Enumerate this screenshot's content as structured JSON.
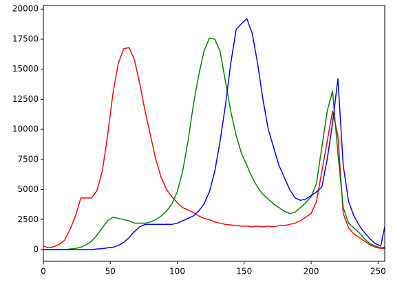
{
  "chart_data": {
    "type": "line",
    "x": [
      0,
      4,
      8,
      12,
      16,
      20,
      24,
      28,
      32,
      36,
      40,
      44,
      48,
      52,
      56,
      60,
      64,
      68,
      72,
      76,
      80,
      84,
      88,
      92,
      96,
      100,
      104,
      108,
      112,
      116,
      120,
      124,
      128,
      132,
      136,
      140,
      144,
      148,
      152,
      156,
      160,
      164,
      168,
      172,
      176,
      180,
      184,
      188,
      192,
      196,
      200,
      204,
      208,
      212,
      216,
      220,
      224,
      228,
      232,
      236,
      240,
      244,
      248,
      252,
      255
    ],
    "series": [
      {
        "color": "#ff0000",
        "values": [
          300,
          150,
          250,
          450,
          800,
          1700,
          2800,
          4300,
          4300,
          4300,
          4900,
          6500,
          9500,
          13000,
          15500,
          16700,
          16800,
          15800,
          13800,
          11500,
          9500,
          7500,
          6000,
          5000,
          4400,
          3900,
          3500,
          3300,
          3100,
          2800,
          2600,
          2500,
          2300,
          2200,
          2100,
          2050,
          2000,
          1950,
          1950,
          1900,
          1950,
          1900,
          1950,
          1900,
          2000,
          2000,
          2100,
          2200,
          2400,
          2700,
          3000,
          4000,
          6500,
          9000,
          11500,
          9500,
          3000,
          1800,
          1300,
          1000,
          700,
          400,
          200,
          100,
          100
        ]
      },
      {
        "color": "#008000",
        "values": [
          0,
          0,
          0,
          0,
          0,
          50,
          100,
          200,
          400,
          700,
          1200,
          1800,
          2400,
          2700,
          2600,
          2500,
          2400,
          2200,
          2200,
          2200,
          2300,
          2500,
          2800,
          3200,
          3800,
          4800,
          6500,
          9000,
          12000,
          14500,
          16500,
          17600,
          17500,
          16500,
          14000,
          11500,
          9500,
          8000,
          7000,
          6000,
          5200,
          4600,
          4200,
          3800,
          3500,
          3200,
          3000,
          3100,
          3500,
          3900,
          4400,
          5500,
          8500,
          11500,
          13200,
          8000,
          3500,
          2200,
          1800,
          1400,
          900,
          500,
          300,
          150,
          200
        ]
      },
      {
        "color": "#0000ff",
        "values": [
          0,
          0,
          0,
          0,
          0,
          0,
          0,
          0,
          0,
          0,
          50,
          80,
          150,
          200,
          350,
          600,
          1000,
          1500,
          1900,
          2100,
          2100,
          2100,
          2100,
          2100,
          2100,
          2200,
          2400,
          2600,
          2800,
          3200,
          3800,
          4800,
          6500,
          9000,
          12000,
          15500,
          18300,
          18800,
          19200,
          18000,
          15500,
          12500,
          10000,
          8500,
          7000,
          6000,
          5000,
          4300,
          4100,
          4200,
          4500,
          4800,
          5200,
          7500,
          10500,
          14200,
          7000,
          4000,
          2800,
          2000,
          1400,
          900,
          500,
          300,
          1900
        ]
      }
    ],
    "xlim": [
      0,
      255
    ],
    "ylim": [
      -970,
      20300
    ],
    "xticks": [
      0,
      50,
      100,
      150,
      200,
      250
    ],
    "yticks": [
      0,
      2500,
      5000,
      7500,
      10000,
      12500,
      15000,
      17500,
      20000
    ]
  }
}
